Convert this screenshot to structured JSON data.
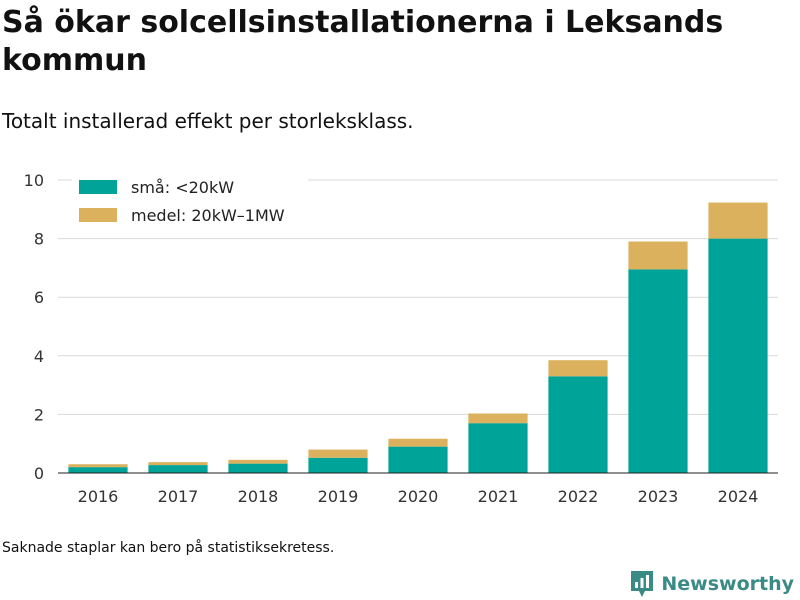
{
  "title": "Så ökar solcellsinstallationerna i Leksands kommun",
  "subtitle": "Totalt installerad effekt per storleksklass.",
  "footnote": "Saknade staplar kan bero på statistiksekretess.",
  "brand": {
    "name": "Newsworthy",
    "icon": "newsworthy-logo-icon"
  },
  "colors": {
    "small": "#00a398",
    "medium": "#dbb15e",
    "grid": "#d9d9d9",
    "brand": "#3a8a86"
  },
  "chart_data": {
    "type": "bar",
    "stacked": true,
    "categories": [
      "2016",
      "2017",
      "2018",
      "2019",
      "2020",
      "2021",
      "2022",
      "2023",
      "2024"
    ],
    "series": [
      {
        "name": "små: <20kW",
        "values": [
          0.2,
          0.27,
          0.32,
          0.52,
          0.9,
          1.7,
          3.3,
          6.95,
          8.0
        ]
      },
      {
        "name": "medel: 20kW–1MW",
        "values": [
          0.1,
          0.1,
          0.13,
          0.28,
          0.27,
          0.33,
          0.55,
          0.95,
          1.23
        ]
      }
    ],
    "ylim": [
      0,
      10
    ],
    "yticks": [
      0,
      2,
      4,
      6,
      8,
      10
    ],
    "xlabel": "",
    "ylabel": "",
    "grid": true,
    "legend_position": "top-left"
  }
}
